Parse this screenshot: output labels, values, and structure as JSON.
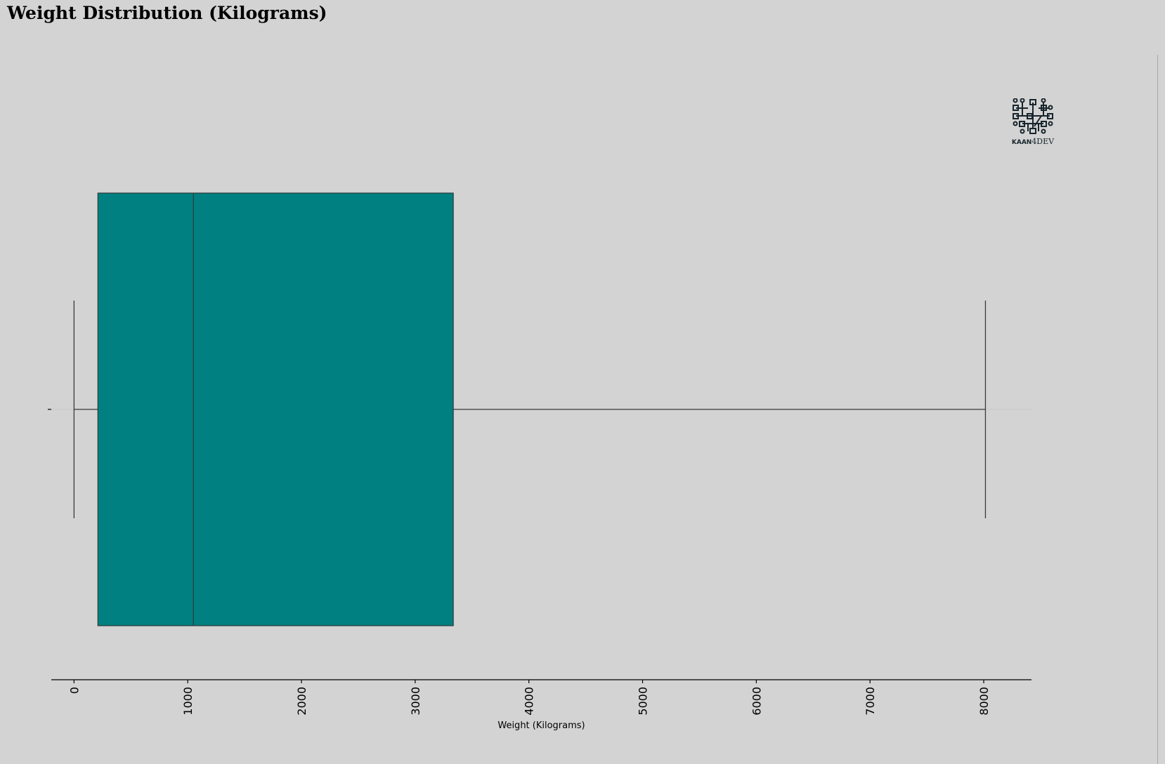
{
  "chart_data": {
    "type": "box",
    "title": "Weight Distribution (Kilograms)",
    "xlabel": "Weight (Kilograms)",
    "ylabel": "",
    "xlim": [
      -200,
      8420
    ],
    "x_ticks": [
      0,
      1000,
      2000,
      3000,
      4000,
      5000,
      6000,
      7000,
      8000
    ],
    "x_tick_labels": [
      "0",
      "1000",
      "2000",
      "3000",
      "4000",
      "5000",
      "6000",
      "7000",
      "8000"
    ],
    "orientation": "horizontal",
    "box": {
      "whisker_low": 0,
      "q1": 210,
      "median": 1050,
      "q3": 3335,
      "whisker_high": 8015
    },
    "grid": false,
    "colors": {
      "box_fill": "#008080",
      "lines": "#3a3a3a",
      "background": "#d3d3d3"
    }
  },
  "logo": {
    "icon": "circuit-board-icon",
    "text_bold": "KAAN",
    "text_regular": "4DEV"
  }
}
